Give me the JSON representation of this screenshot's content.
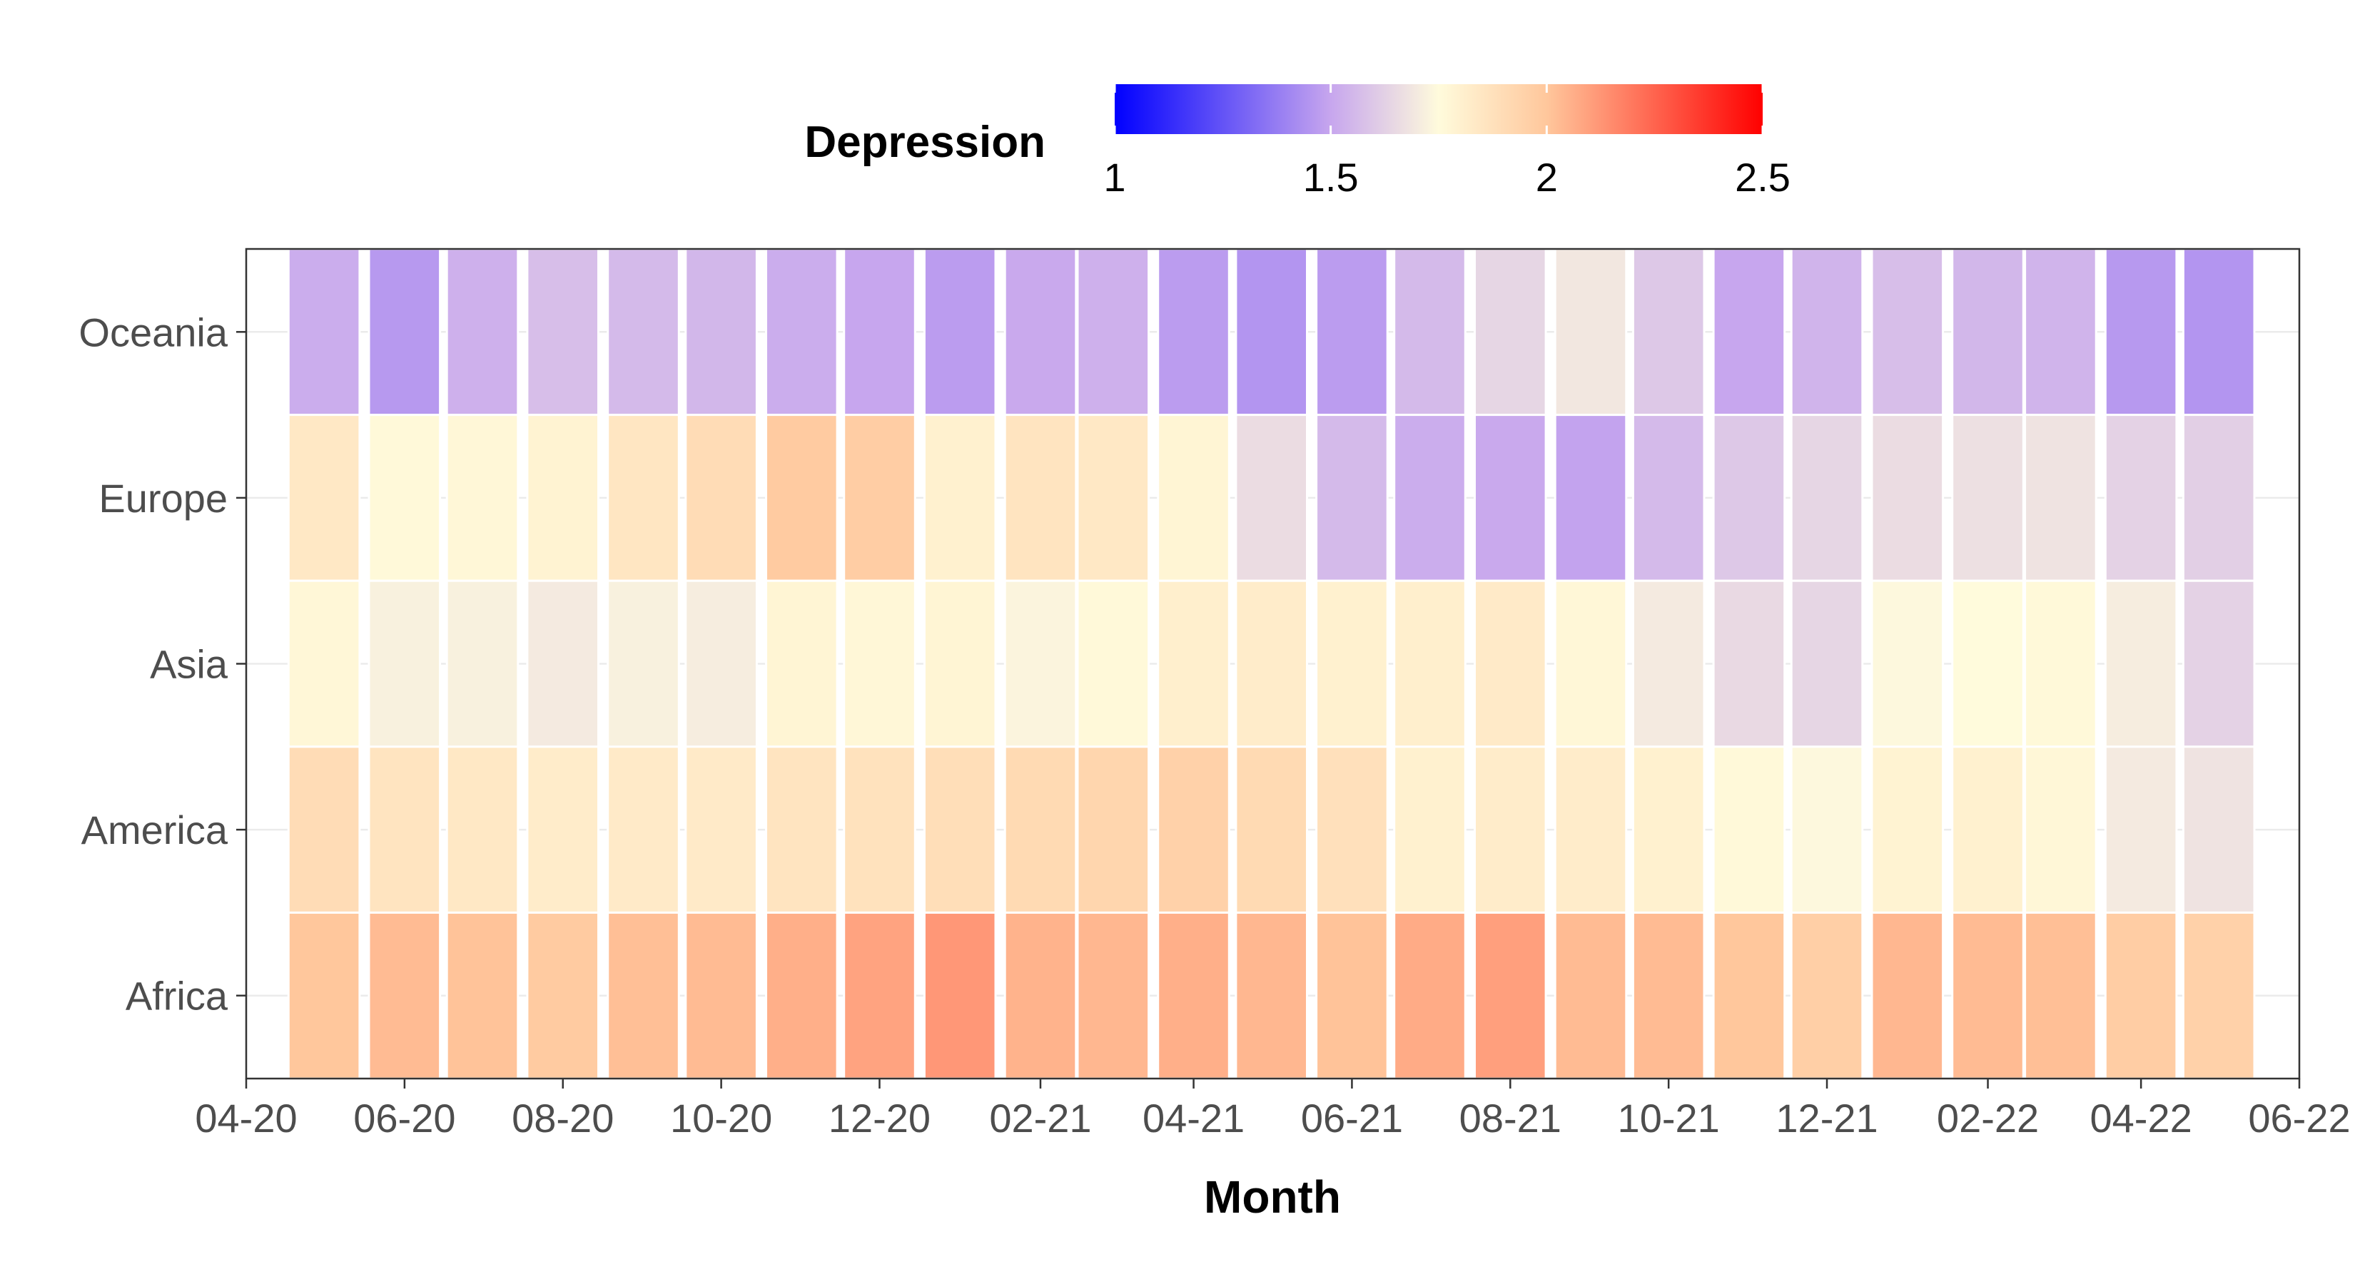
{
  "chart_data": {
    "type": "heatmap",
    "title": "",
    "xlabel": "Month",
    "ylabel": "",
    "legend": {
      "title": "Depression",
      "position": "top",
      "range": [
        1,
        2.5
      ],
      "ticks": [
        1,
        1.5,
        2,
        2.5
      ],
      "tick_labels": [
        "1",
        "1.5",
        "2",
        "2.5"
      ],
      "color_stops": [
        {
          "value": 1.0,
          "color": "#0000ff"
        },
        {
          "value": 1.5,
          "color": "#c7a6ee"
        },
        {
          "value": 1.75,
          "color": "#fffbdc"
        },
        {
          "value": 2.0,
          "color": "#ffc79c"
        },
        {
          "value": 2.5,
          "color": "#ff0000"
        }
      ]
    },
    "x_axis": {
      "type": "date",
      "range": [
        "2020-04",
        "2022-06"
      ],
      "ticks": [
        "2020-04",
        "2020-06",
        "2020-08",
        "2020-10",
        "2020-12",
        "2021-02",
        "2021-04",
        "2021-06",
        "2021-08",
        "2021-10",
        "2021-12",
        "2022-02",
        "2022-04",
        "2022-06"
      ],
      "tick_labels": [
        "04-20",
        "06-20",
        "08-20",
        "10-20",
        "12-20",
        "02-21",
        "04-21",
        "06-21",
        "08-21",
        "10-21",
        "12-21",
        "02-22",
        "04-22",
        "06-22"
      ]
    },
    "grid": true,
    "months": [
      "2020-05",
      "2020-06",
      "2020-07",
      "2020-08",
      "2020-09",
      "2020-10",
      "2020-11",
      "2020-12",
      "2021-01",
      "2021-02",
      "2021-03",
      "2021-04",
      "2021-05",
      "2021-06",
      "2021-07",
      "2021-08",
      "2021-09",
      "2021-10",
      "2021-11",
      "2021-12",
      "2022-01",
      "2022-02",
      "2022-03",
      "2022-04",
      "2022-05"
    ],
    "rows": [
      "Oceania",
      "Europe",
      "Asia",
      "America",
      "Africa"
    ],
    "values": {
      "Oceania": [
        1.52,
        1.46,
        1.53,
        1.57,
        1.56,
        1.55,
        1.52,
        1.5,
        1.47,
        1.51,
        1.53,
        1.47,
        1.45,
        1.47,
        1.56,
        1.64,
        1.69,
        1.6,
        1.5,
        1.54,
        1.57,
        1.55,
        1.54,
        1.46,
        1.45
      ],
      "Europe": [
        1.84,
        1.76,
        1.77,
        1.79,
        1.85,
        1.9,
        1.98,
        1.97,
        1.8,
        1.86,
        1.84,
        1.78,
        1.66,
        1.56,
        1.52,
        1.51,
        1.49,
        1.56,
        1.6,
        1.64,
        1.66,
        1.67,
        1.68,
        1.63,
        1.62
      ],
      "Asia": [
        1.77,
        1.72,
        1.72,
        1.7,
        1.72,
        1.71,
        1.78,
        1.77,
        1.78,
        1.73,
        1.76,
        1.81,
        1.82,
        1.8,
        1.81,
        1.83,
        1.77,
        1.7,
        1.65,
        1.64,
        1.74,
        1.75,
        1.76,
        1.71,
        1.63
      ],
      "America": [
        1.9,
        1.86,
        1.84,
        1.82,
        1.83,
        1.83,
        1.86,
        1.87,
        1.89,
        1.91,
        1.93,
        1.95,
        1.91,
        1.88,
        1.8,
        1.82,
        1.82,
        1.8,
        1.76,
        1.74,
        1.79,
        1.8,
        1.77,
        1.7,
        1.68
      ],
      "Africa": [
        2.0,
        2.03,
        2.01,
        1.98,
        2.02,
        2.03,
        2.06,
        2.09,
        2.12,
        2.05,
        2.04,
        2.06,
        2.04,
        2.01,
        2.07,
        2.1,
        2.03,
        2.03,
        2.0,
        1.96,
        2.04,
        2.03,
        2.02,
        1.97,
        1.95
      ]
    }
  }
}
